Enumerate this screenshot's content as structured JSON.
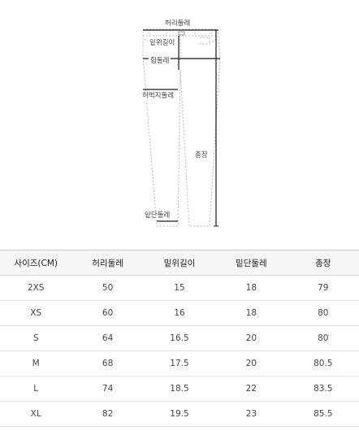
{
  "diagram": {
    "labels": {
      "waist": "허리둘레",
      "rise": "밑위길이",
      "hip": "힙둘레",
      "thigh": "허벅지둘레",
      "length": "총장",
      "hem": "밑단둘레"
    },
    "line_color": "#1a1a1a"
  },
  "table": {
    "headers": [
      "사이즈(CM)",
      "허리둘레",
      "밑위길이",
      "밑단둘레",
      "총장"
    ],
    "rows": [
      [
        "2XS",
        "50",
        "15",
        "18",
        "79"
      ],
      [
        "XS",
        "60",
        "16",
        "18",
        "80"
      ],
      [
        "S",
        "64",
        "16.5",
        "20",
        "80"
      ],
      [
        "M",
        "68",
        "17.5",
        "20",
        "80.5"
      ],
      [
        "L",
        "74",
        "18.5",
        "22",
        "83.5"
      ],
      [
        "XL",
        "82",
        "19.5",
        "23",
        "85.5"
      ]
    ]
  }
}
